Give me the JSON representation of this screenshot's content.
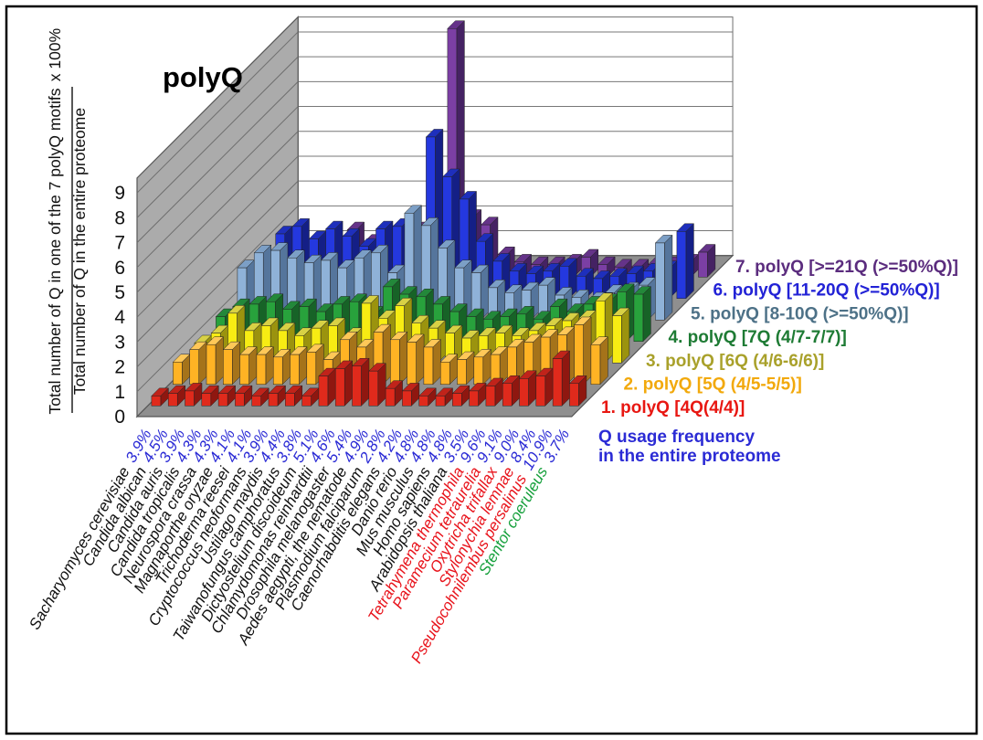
{
  "figure": {
    "title": "polyQ",
    "y_axis": {
      "numerator": "Total number of Q in one of the 7 polyQ motifs",
      "denominator": "Total number of Q in the entire proteome",
      "multiplier": "x 100%",
      "ticks": [
        0,
        1,
        2,
        3,
        4,
        5,
        6,
        7,
        8,
        9
      ]
    },
    "x_axis_note": {
      "line1": "Q usage frequency",
      "line2": "in the entire proteome",
      "color": "#2B2BD5"
    },
    "colors": {
      "wall": "#ABABAB",
      "floor": "#8F8F8F",
      "back_wall": "#FFFFFF",
      "grid": "#6E6E6E",
      "frame_border": "#000000"
    }
  },
  "chart_data": {
    "type": "bar",
    "projection": "3d-depth-series",
    "title": "polyQ",
    "ylabel": "Total number of Q in one of the 7 polyQ motifs / Total number of Q in the entire proteome x 100%",
    "ylim": [
      0,
      9
    ],
    "grid": true,
    "legend_position": "right-diagonal",
    "categories": [
      "Sacharyomyces cerevisiae",
      "Candida albican",
      "Candida auris",
      "Candida tropicalis",
      "Neurospora crassa",
      "Magnaporthe oryzae",
      "Trichoderma reesei",
      "Cryptococcus neoformans",
      "Ustilago maydis",
      "Taiwanofungus camphoratus",
      "Dictyostelium discoideum",
      "Chlamydomonas reinhardtii",
      "Drosophila melanogaster",
      "Aedes aegypti, the nematode",
      "Plasmodium falciparum",
      "Caenorhabditis elegans",
      "Danio rerio",
      "Mus musculus",
      "Homo sapiens",
      "Arabidopsis thaliana",
      "Tetrahymena thermophila",
      "Paramecium tetraurelia",
      "Oxytricha trifallax",
      "Stylonychia lemnae",
      "Pseudocohnilembus persalinus",
      "Stentor coeruleus"
    ],
    "category_name_colors": [
      "#111111",
      "#111111",
      "#111111",
      "#111111",
      "#111111",
      "#111111",
      "#111111",
      "#111111",
      "#111111",
      "#111111",
      "#111111",
      "#111111",
      "#111111",
      "#111111",
      "#111111",
      "#111111",
      "#111111",
      "#111111",
      "#111111",
      "#111111",
      "#E8131B",
      "#E8131B",
      "#E8131B",
      "#E8131B",
      "#E8131B",
      "#16A03C"
    ],
    "q_usage_percent": [
      "3.9%",
      "4.5%",
      "3.9%",
      "4.3%",
      "4.3%",
      "4.1%",
      "4.1%",
      "3.9%",
      "4.4%",
      "3.8%",
      "5.1%",
      "4.6%",
      "5.4%",
      "4.9%",
      "2.8%",
      "4.2%",
      "4.8%",
      "4.8%",
      "4.8%",
      "3.5%",
      "9.6%",
      "9.1%",
      "9.0%",
      "8.4%",
      "10.9%",
      "3.7%"
    ],
    "percent_color": "#2B2BD5",
    "series": [
      {
        "name": "1. polyQ [4Q(4/4)]",
        "color": "#E02A1C",
        "side": "#8F1710",
        "top": "#C0231A",
        "label_color": "#E81712",
        "values": [
          0.4,
          0.5,
          0.6,
          0.5,
          0.5,
          0.5,
          0.4,
          0.5,
          0.5,
          0.4,
          1.2,
          1.5,
          1.6,
          1.4,
          0.7,
          0.6,
          0.4,
          0.4,
          0.5,
          0.6,
          0.8,
          0.9,
          1.1,
          1.2,
          1.9,
          0.9
        ]
      },
      {
        "name": "2. polyQ [5Q (4/5-5/5)]",
        "color": "#FFB324",
        "side": "#A5731A",
        "top": "#FFC858",
        "label_color": "#F2A90C",
        "values": [
          0.9,
          1.4,
          1.6,
          1.4,
          1.2,
          1.2,
          1.1,
          1.2,
          1.3,
          1.0,
          1.8,
          1.5,
          2.1,
          1.8,
          1.7,
          1.5,
          0.9,
          1.0,
          1.1,
          1.2,
          1.5,
          1.7,
          1.9,
          2.0,
          2.4,
          1.6
        ]
      },
      {
        "name": "3. polyQ [6Q (4/6-6/6)]",
        "color": "#F7EC13",
        "side": "#9B930E",
        "top": "#D8D145",
        "label_color": "#A9A12B",
        "values": [
          0.8,
          1.2,
          2.0,
          1.3,
          1.5,
          1.3,
          1.1,
          1.4,
          1.5,
          1.1,
          2.4,
          1.8,
          2.3,
          1.6,
          1.4,
          1.2,
          1.0,
          1.1,
          1.2,
          1.1,
          1.3,
          1.5,
          1.7,
          1.8,
          2.5,
          1.9
        ]
      },
      {
        "name": "4. polyQ [7Q (4/7-7/7)]",
        "color": "#28A23C",
        "side": "#176327",
        "top": "#23883A",
        "label_color": "#1E7B34",
        "values": [
          1.0,
          1.4,
          1.5,
          1.6,
          1.3,
          1.4,
          1.2,
          1.5,
          1.6,
          1.1,
          2.2,
          1.9,
          1.8,
          1.5,
          1.2,
          1.0,
          0.9,
          1.0,
          1.1,
          0.9,
          1.4,
          1.2,
          1.5,
          1.6,
          2.0,
          1.9
        ]
      },
      {
        "name": "5. polyQ [8-10Q (>=50%Q)]",
        "color": "#8FB2D8",
        "side": "#55759C",
        "top": "#7C9FC6",
        "label_color": "#4D7187",
        "values": [
          2.1,
          2.7,
          2.8,
          2.5,
          2.3,
          2.4,
          2.1,
          2.5,
          2.7,
          1.9,
          4.3,
          3.8,
          2.9,
          2.1,
          1.9,
          1.3,
          1.1,
          1.2,
          1.4,
          1.0,
          0.9,
          0.8,
          1.1,
          1.2,
          1.4,
          3.1
        ]
      },
      {
        "name": "6. polyQ [11-20Q (>=50%Q)]",
        "color": "#2438DF",
        "side": "#141F86",
        "top": "#1E2FBC",
        "label_color": "#2222D6",
        "values": [
          1.3,
          2.6,
          2.9,
          2.4,
          2.8,
          2.5,
          2.1,
          2.8,
          2.9,
          2.3,
          6.5,
          4.9,
          4.0,
          2.3,
          1.5,
          1.1,
          1.0,
          1.1,
          1.3,
          0.9,
          0.8,
          0.9,
          1.0,
          1.1,
          1.2,
          2.7
        ]
      },
      {
        "name": "7. polyQ [>=21Q (>=50%Q)]",
        "color": "#7B3FA4",
        "side": "#452263",
        "top": "#653389",
        "label_color": "#5B2C7E",
        "values": [
          0.3,
          0.6,
          1.3,
          1.2,
          1.9,
          1.4,
          0.8,
          1.7,
          1.9,
          0.9,
          10.0,
          2.4,
          2.1,
          0.9,
          0.6,
          0.5,
          0.5,
          0.6,
          0.8,
          0.5,
          0.4,
          0.4,
          0.5,
          0.5,
          0.6,
          1.0
        ]
      }
    ]
  }
}
